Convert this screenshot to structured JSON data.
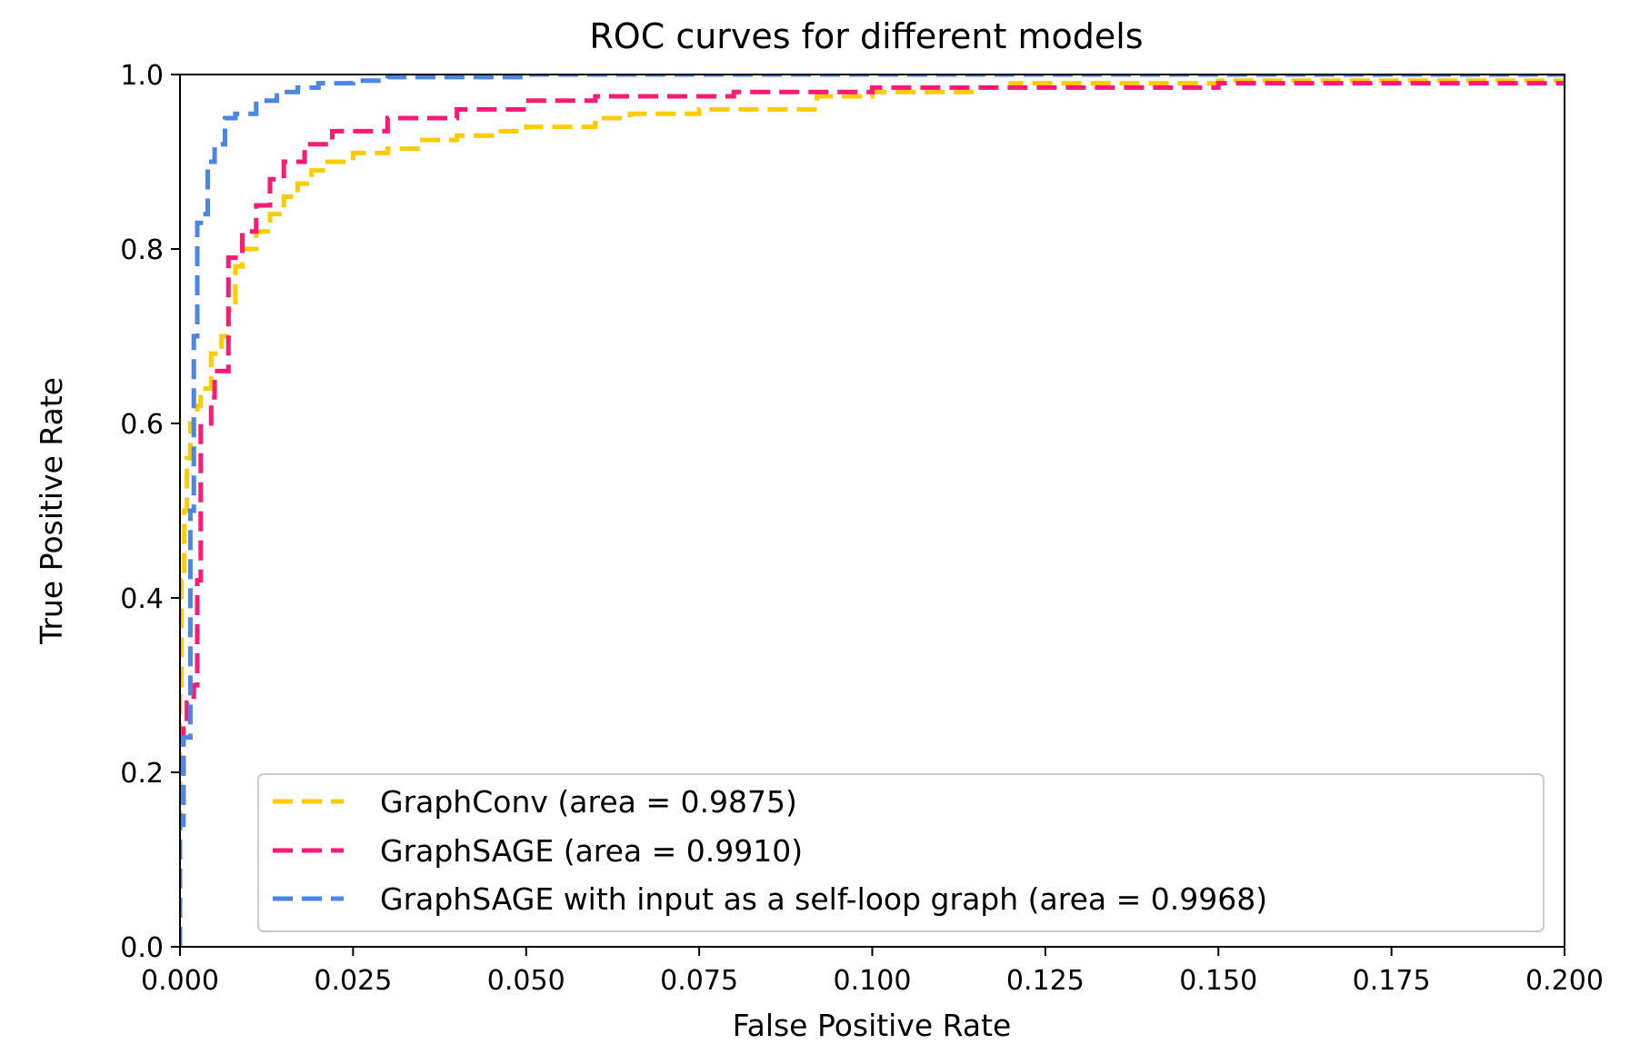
{
  "chart_data": {
    "type": "line",
    "title": "ROC curves for different models",
    "xlabel": "False Positive Rate",
    "ylabel": "True Positive Rate",
    "xlim": [
      0.0,
      0.2
    ],
    "ylim": [
      0.0,
      1.0
    ],
    "xticks": [
      "0.000",
      "0.025",
      "0.050",
      "0.075",
      "0.100",
      "0.125",
      "0.150",
      "0.175",
      "0.200"
    ],
    "yticks": [
      "0.0",
      "0.2",
      "0.4",
      "0.6",
      "0.8",
      "1.0"
    ],
    "grid": false,
    "legend_position": "lower-right",
    "series": [
      {
        "name": "GraphConv (area = 0.9875)",
        "color": "#FFCC00",
        "x": [
          0.0,
          0.0,
          0.0002,
          0.0002,
          0.0006,
          0.0006,
          0.001,
          0.001,
          0.0015,
          0.0015,
          0.002,
          0.002,
          0.0025,
          0.0025,
          0.003,
          0.003,
          0.0045,
          0.0045,
          0.006,
          0.006,
          0.007,
          0.007,
          0.008,
          0.008,
          0.009,
          0.009,
          0.011,
          0.011,
          0.013,
          0.013,
          0.015,
          0.015,
          0.017,
          0.017,
          0.019,
          0.019,
          0.021,
          0.021,
          0.025,
          0.025,
          0.03,
          0.03,
          0.035,
          0.035,
          0.04,
          0.04,
          0.045,
          0.045,
          0.05,
          0.05,
          0.06,
          0.06,
          0.065,
          0.065,
          0.075,
          0.075,
          0.085,
          0.085,
          0.092,
          0.092,
          0.1,
          0.1,
          0.115,
          0.115,
          0.12,
          0.12,
          0.15,
          0.15,
          0.2
        ],
        "y": [
          0.0,
          0.3,
          0.3,
          0.42,
          0.42,
          0.5,
          0.5,
          0.56,
          0.56,
          0.6,
          0.6,
          0.61,
          0.61,
          0.62,
          0.62,
          0.64,
          0.64,
          0.68,
          0.68,
          0.7,
          0.7,
          0.73,
          0.73,
          0.78,
          0.78,
          0.8,
          0.8,
          0.82,
          0.82,
          0.84,
          0.84,
          0.86,
          0.86,
          0.875,
          0.875,
          0.89,
          0.89,
          0.9,
          0.9,
          0.91,
          0.91,
          0.915,
          0.915,
          0.925,
          0.925,
          0.93,
          0.93,
          0.935,
          0.935,
          0.94,
          0.94,
          0.95,
          0.95,
          0.955,
          0.955,
          0.96,
          0.96,
          0.96,
          0.96,
          0.975,
          0.975,
          0.98,
          0.98,
          0.985,
          0.985,
          0.99,
          0.99,
          0.993,
          0.993
        ]
      },
      {
        "name": "GraphSAGE (area = 0.9910)",
        "color": "#FF1A75",
        "x": [
          0.0,
          0.0,
          0.0005,
          0.0005,
          0.001,
          0.001,
          0.002,
          0.002,
          0.0025,
          0.0025,
          0.003,
          0.003,
          0.0045,
          0.0045,
          0.005,
          0.005,
          0.007,
          0.007,
          0.009,
          0.009,
          0.011,
          0.011,
          0.013,
          0.013,
          0.015,
          0.015,
          0.018,
          0.018,
          0.022,
          0.022,
          0.03,
          0.03,
          0.04,
          0.04,
          0.05,
          0.05,
          0.06,
          0.06,
          0.08,
          0.08,
          0.1,
          0.1,
          0.15,
          0.15,
          0.2
        ],
        "y": [
          0.0,
          0.15,
          0.15,
          0.25,
          0.25,
          0.28,
          0.28,
          0.3,
          0.3,
          0.42,
          0.42,
          0.6,
          0.6,
          0.63,
          0.63,
          0.66,
          0.66,
          0.79,
          0.79,
          0.82,
          0.82,
          0.85,
          0.85,
          0.88,
          0.88,
          0.9,
          0.9,
          0.92,
          0.92,
          0.935,
          0.935,
          0.95,
          0.95,
          0.96,
          0.96,
          0.97,
          0.97,
          0.975,
          0.975,
          0.98,
          0.98,
          0.985,
          0.985,
          0.99,
          0.99
        ]
      },
      {
        "name": "GraphSAGE with input as a self-loop graph (area = 0.9968)",
        "color": "#4A86E8",
        "x": [
          0.0,
          0.0,
          0.0005,
          0.0005,
          0.0015,
          0.0015,
          0.002,
          0.002,
          0.0025,
          0.0025,
          0.003,
          0.003,
          0.004,
          0.004,
          0.005,
          0.005,
          0.0065,
          0.0065,
          0.008,
          0.008,
          0.011,
          0.011,
          0.014,
          0.014,
          0.017,
          0.017,
          0.02,
          0.02,
          0.025,
          0.025,
          0.03,
          0.03,
          0.05,
          0.05,
          0.1,
          0.1,
          0.2
        ],
        "y": [
          0.0,
          0.14,
          0.14,
          0.24,
          0.24,
          0.5,
          0.5,
          0.7,
          0.7,
          0.83,
          0.83,
          0.84,
          0.84,
          0.9,
          0.9,
          0.92,
          0.92,
          0.95,
          0.95,
          0.955,
          0.955,
          0.97,
          0.97,
          0.98,
          0.98,
          0.985,
          0.985,
          0.99,
          0.99,
          0.993,
          0.993,
          0.997,
          0.997,
          1.0,
          1.0,
          1.0,
          1.0
        ]
      }
    ]
  }
}
